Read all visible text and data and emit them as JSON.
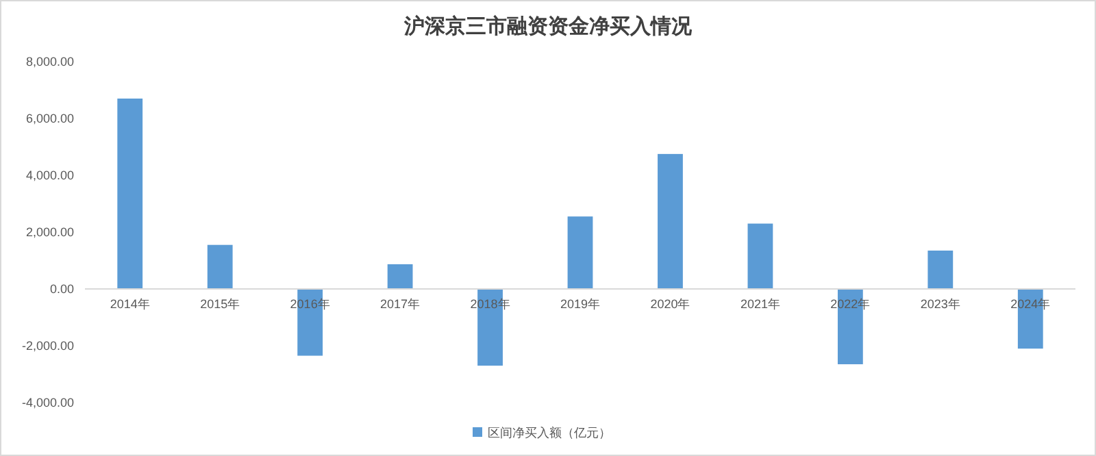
{
  "chart_data": {
    "type": "bar",
    "title": "沪深京三市融资资金净买入情况",
    "categories": [
      "2014年",
      "2015年",
      "2016年",
      "2017年",
      "2018年",
      "2019年",
      "2020年",
      "2021年",
      "2022年",
      "2023年",
      "2024年"
    ],
    "series": [
      {
        "name": "区间净买入额（亿元）",
        "color": "#5b9bd5",
        "values": [
          6700,
          1550,
          -2350,
          870,
          -2700,
          2550,
          4750,
          2300,
          -2650,
          1350,
          -2100
        ]
      }
    ],
    "ylim": [
      -4000,
      8000
    ],
    "yticks": [
      {
        "value": -4000,
        "label": "-4,000.00"
      },
      {
        "value": -2000,
        "label": "-2,000.00"
      },
      {
        "value": 0,
        "label": "0.00"
      },
      {
        "value": 2000,
        "label": "2,000.00"
      },
      {
        "value": 4000,
        "label": "4,000.00"
      },
      {
        "value": 6000,
        "label": "6,000.00"
      },
      {
        "value": 8000,
        "label": "8,000.00"
      }
    ],
    "grid": false,
    "legend": "bottom"
  }
}
